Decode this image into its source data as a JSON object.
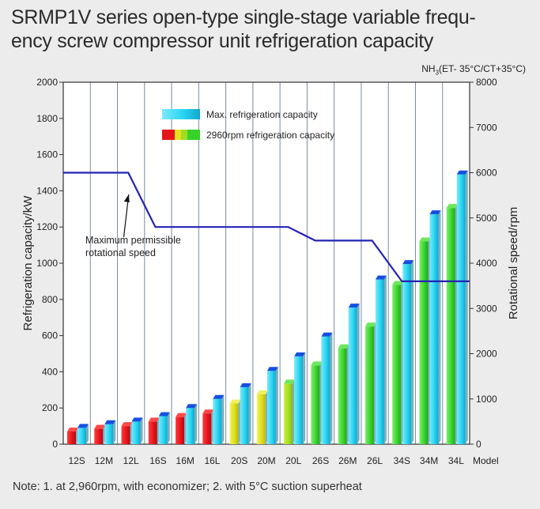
{
  "title_line1": "SRMP1V series open-type single-stage variable frequ-",
  "title_line2": "ency screw compressor unit refrigeration capacity",
  "condition": {
    "prefix": "NH",
    "sub": "3",
    "suffix": "(ET- 35°C/CT+35°C)"
  },
  "note": "Note: 1. at 2,960rpm, with economizer;  2. with 5°C suction superheat",
  "colors": {
    "max_bar": "#27d6f2",
    "red": "#e3141b",
    "yellow": "#e2e21e",
    "green": "#36d22a",
    "line": "#2323b4",
    "cap": "#1450e0"
  },
  "chart_data": {
    "type": "bar",
    "ylabel": "Refrigeration capacity/kW",
    "y2label": "Rotational speed/rpm",
    "xlabel": "Model",
    "ylim": [
      0,
      2000
    ],
    "y2lim": [
      0,
      8000
    ],
    "yticks": [
      "0",
      "200",
      "400",
      "600",
      "800",
      "1000",
      "1200",
      "1400",
      "1600",
      "1800",
      "2000"
    ],
    "y2ticks": [
      "0",
      "1000",
      "2000",
      "3000",
      "4000",
      "5000",
      "6000",
      "7000",
      "8000"
    ],
    "grid": "vertical",
    "legend_position": "top-left",
    "categories": [
      "12S",
      "12M",
      "12L",
      "16S",
      "16M",
      "16L",
      "20S",
      "20M",
      "20L",
      "26S",
      "26M",
      "26L",
      "34S",
      "34M",
      "34L"
    ],
    "series": [
      {
        "name": "Max. refrigeration capacity",
        "values": [
          90,
          110,
          125,
          155,
          200,
          250,
          315,
          405,
          485,
          595,
          755,
          910,
          995,
          1270,
          1490
        ]
      },
      {
        "name": "2960rpm refrigeration capacity",
        "values": [
          70,
          85,
          100,
          125,
          150,
          170,
          225,
          275,
          335,
          435,
          530,
          650,
          880,
          1120,
          1305
        ]
      }
    ],
    "speed_line": {
      "name": "Maximum permissible rotational speed",
      "x": [
        0,
        2.4,
        3.4,
        8.3,
        9.3,
        11.4,
        12.5,
        15.5
      ],
      "rpm": [
        6000,
        6000,
        4800,
        4800,
        4500,
        4500,
        3600,
        3600
      ]
    },
    "annotation": [
      "Maximum permissible",
      "rotational speed"
    ]
  }
}
